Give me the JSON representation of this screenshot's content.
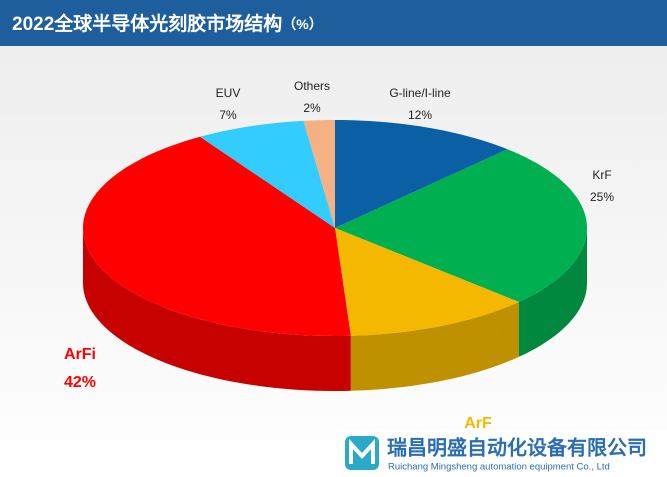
{
  "chart_data": {
    "type": "pie",
    "title": "2022全球半导体光刻胶市场结构",
    "unit": "（%）",
    "categories": [
      "G-line/I-line",
      "KrF",
      "ArF",
      "ArFi",
      "EUV",
      "Others"
    ],
    "values": [
      12,
      25,
      12,
      42,
      7,
      2
    ],
    "value_labels": [
      "12%",
      "25%",
      null,
      "42%",
      "7%",
      "2%"
    ],
    "colors": [
      "#0b5fa5",
      "#00b050",
      "#f5b800",
      "#ff0000",
      "#33ccff",
      "#f4b183"
    ]
  },
  "watermark": {
    "name": "瑞昌明盛自动化设备有限公司",
    "name_en": "Ruichang Mingsheng automation equipment Co., Ltd"
  }
}
